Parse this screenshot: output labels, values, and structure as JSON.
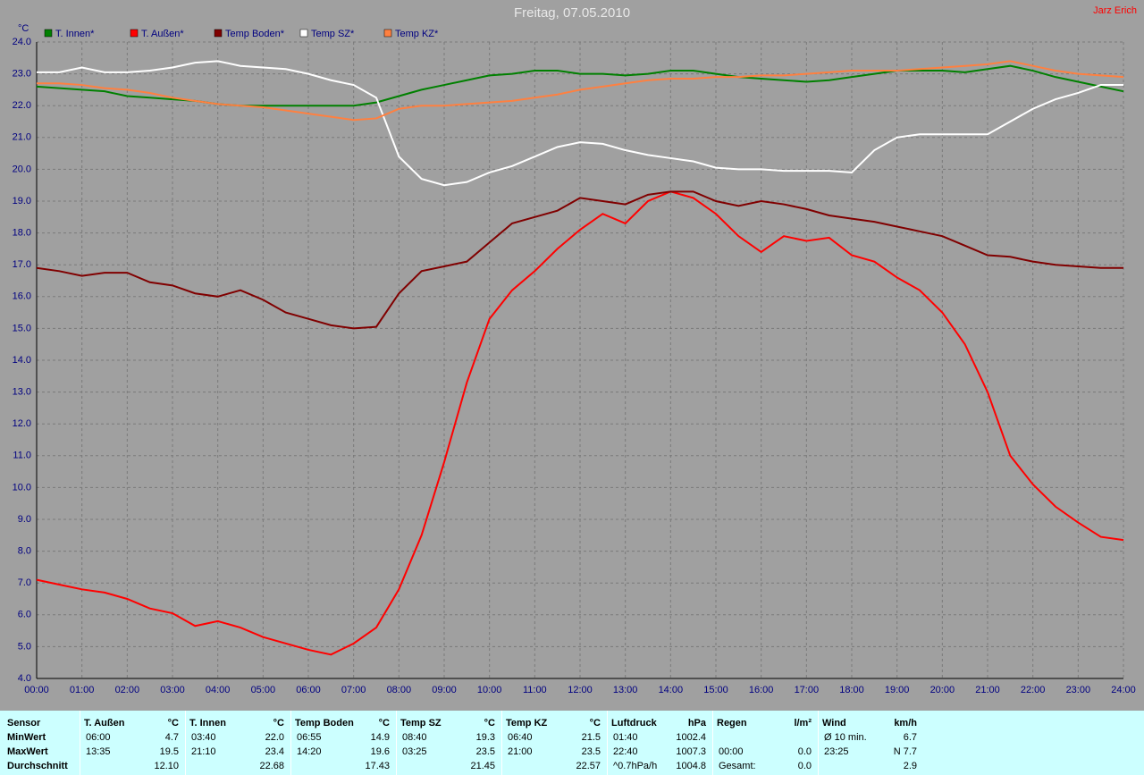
{
  "chart_data": {
    "type": "line",
    "title": "Freitag, 07.05.2010",
    "author": "Jarz Erich",
    "y_label": "°C",
    "x": [
      0,
      0.5,
      1,
      1.5,
      2,
      2.5,
      3,
      3.5,
      4,
      4.5,
      5,
      5.5,
      6,
      6.5,
      7,
      7.5,
      8,
      8.5,
      9,
      9.5,
      10,
      10.5,
      11,
      11.5,
      12,
      12.5,
      13,
      13.5,
      14,
      14.5,
      15,
      15.5,
      16,
      16.5,
      17,
      17.5,
      18,
      18.5,
      19,
      19.5,
      20,
      20.5,
      21,
      21.5,
      22,
      22.5,
      23,
      23.5,
      24
    ],
    "xlim": [
      0,
      24
    ],
    "xticks": [
      {
        "value": 0,
        "label": "00:00"
      },
      {
        "value": 1,
        "label": "01:00"
      },
      {
        "value": 2,
        "label": "02:00"
      },
      {
        "value": 3,
        "label": "03:00"
      },
      {
        "value": 4,
        "label": "04:00"
      },
      {
        "value": 5,
        "label": "05:00"
      },
      {
        "value": 6,
        "label": "06:00"
      },
      {
        "value": 7,
        "label": "07:00"
      },
      {
        "value": 8,
        "label": "08:00"
      },
      {
        "value": 9,
        "label": "09:00"
      },
      {
        "value": 10,
        "label": "10:00"
      },
      {
        "value": 11,
        "label": "11:00"
      },
      {
        "value": 12,
        "label": "12:00"
      },
      {
        "value": 13,
        "label": "13:00"
      },
      {
        "value": 14,
        "label": "14:00"
      },
      {
        "value": 15,
        "label": "15:00"
      },
      {
        "value": 16,
        "label": "16:00"
      },
      {
        "value": 17,
        "label": "17:00"
      },
      {
        "value": 18,
        "label": "18:00"
      },
      {
        "value": 19,
        "label": "19:00"
      },
      {
        "value": 20,
        "label": "20:00"
      },
      {
        "value": 21,
        "label": "21:00"
      },
      {
        "value": 22,
        "label": "22:00"
      },
      {
        "value": 23,
        "label": "23:00"
      },
      {
        "value": 24,
        "label": "24:00"
      }
    ],
    "ylim": [
      4,
      24
    ],
    "yticks": [
      {
        "value": 4,
        "label": "4.0"
      },
      {
        "value": 5,
        "label": "5.0"
      },
      {
        "value": 6,
        "label": "6.0"
      },
      {
        "value": 7,
        "label": "7.0"
      },
      {
        "value": 8,
        "label": "8.0"
      },
      {
        "value": 9,
        "label": "9.0"
      },
      {
        "value": 10,
        "label": "10.0"
      },
      {
        "value": 11,
        "label": "11.0"
      },
      {
        "value": 12,
        "label": "12.0"
      },
      {
        "value": 13,
        "label": "13.0"
      },
      {
        "value": 14,
        "label": "14.0"
      },
      {
        "value": 15,
        "label": "15.0"
      },
      {
        "value": 16,
        "label": "16.0"
      },
      {
        "value": 17,
        "label": "17.0"
      },
      {
        "value": 18,
        "label": "18.0"
      },
      {
        "value": 19,
        "label": "19.0"
      },
      {
        "value": 20,
        "label": "20.0"
      },
      {
        "value": 21,
        "label": "21.0"
      },
      {
        "value": 22,
        "label": "22.0"
      },
      {
        "value": 23,
        "label": "23.0"
      },
      {
        "value": 24,
        "label": "24.0"
      }
    ],
    "grid": true,
    "series": [
      {
        "name": "T. Innen*",
        "color": "#008000",
        "values": [
          22.6,
          22.55,
          22.5,
          22.45,
          22.3,
          22.25,
          22.2,
          22.15,
          22.05,
          22.0,
          22.0,
          22.0,
          22.0,
          22.0,
          22.0,
          22.1,
          22.3,
          22.5,
          22.65,
          22.8,
          22.95,
          23.0,
          23.1,
          23.1,
          23.0,
          23.0,
          22.95,
          23.0,
          23.1,
          23.1,
          23.0,
          22.9,
          22.85,
          22.8,
          22.75,
          22.8,
          22.9,
          23.0,
          23.1,
          23.1,
          23.1,
          23.05,
          23.15,
          23.25,
          23.1,
          22.9,
          22.75,
          22.6,
          22.45
        ]
      },
      {
        "name": "T. Außen*",
        "color": "#ff0000",
        "values": [
          7.1,
          6.95,
          6.8,
          6.7,
          6.5,
          6.2,
          6.05,
          5.65,
          5.8,
          5.6,
          5.3,
          5.1,
          4.9,
          4.75,
          5.1,
          5.6,
          6.8,
          8.5,
          10.8,
          13.3,
          15.3,
          16.2,
          16.8,
          17.5,
          18.1,
          18.6,
          18.3,
          19.0,
          19.3,
          19.1,
          18.6,
          17.9,
          17.4,
          17.9,
          17.75,
          17.85,
          17.3,
          17.1,
          16.6,
          16.2,
          15.5,
          14.5,
          13.0,
          11.0,
          10.1,
          9.4,
          8.9,
          8.45,
          8.35
        ]
      },
      {
        "name": "Temp Boden*",
        "color": "#800000",
        "values": [
          16.9,
          16.8,
          16.65,
          16.75,
          16.75,
          16.45,
          16.35,
          16.1,
          16.0,
          16.2,
          15.9,
          15.5,
          15.3,
          15.1,
          15.0,
          15.05,
          16.1,
          16.8,
          16.95,
          17.1,
          17.7,
          18.3,
          18.5,
          18.7,
          19.1,
          19.0,
          18.9,
          19.2,
          19.3,
          19.3,
          19.0,
          18.85,
          19.0,
          18.9,
          18.75,
          18.55,
          18.45,
          18.35,
          18.2,
          18.05,
          17.9,
          17.6,
          17.3,
          17.25,
          17.1,
          17.0,
          16.95,
          16.9,
          16.9
        ]
      },
      {
        "name": "Temp SZ*",
        "color": "#ffffff",
        "values": [
          23.05,
          23.05,
          23.2,
          23.05,
          23.05,
          23.1,
          23.2,
          23.35,
          23.4,
          23.25,
          23.2,
          23.15,
          23.0,
          22.8,
          22.65,
          22.25,
          20.4,
          19.7,
          19.5,
          19.6,
          19.9,
          20.1,
          20.4,
          20.7,
          20.85,
          20.8,
          20.6,
          20.45,
          20.35,
          20.25,
          20.05,
          20.0,
          20.0,
          19.95,
          19.95,
          19.95,
          19.9,
          20.6,
          21.0,
          21.1,
          21.1,
          21.1,
          21.1,
          21.5,
          21.9,
          22.2,
          22.4,
          22.65,
          22.65
        ]
      },
      {
        "name": "Temp KZ*",
        "color": "#ff8040",
        "values": [
          22.7,
          22.7,
          22.65,
          22.55,
          22.5,
          22.4,
          22.25,
          22.15,
          22.05,
          22.0,
          21.95,
          21.85,
          21.75,
          21.65,
          21.55,
          21.6,
          21.9,
          22.0,
          22.0,
          22.05,
          22.1,
          22.15,
          22.25,
          22.35,
          22.5,
          22.6,
          22.7,
          22.8,
          22.85,
          22.85,
          22.9,
          22.9,
          22.95,
          22.95,
          23.0,
          23.05,
          23.1,
          23.1,
          23.1,
          23.15,
          23.2,
          23.25,
          23.3,
          23.4,
          23.25,
          23.1,
          23.0,
          22.95,
          22.9
        ]
      }
    ]
  },
  "stats_table": {
    "row_labels": [
      "Sensor",
      "MinWert",
      "MaxWert",
      "Durchschnitt"
    ],
    "groups": [
      {
        "name": "T. Außen",
        "unit": "°C",
        "min": [
          "06:00",
          "4.7"
        ],
        "max": [
          "13:35",
          "19.5"
        ],
        "avg": [
          "12.10"
        ]
      },
      {
        "name": "T. Innen",
        "unit": "°C",
        "min": [
          "03:40",
          "22.0"
        ],
        "max": [
          "21:10",
          "23.4"
        ],
        "avg": [
          "22.68"
        ]
      },
      {
        "name": "Temp Boden",
        "unit": "°C",
        "min": [
          "06:55",
          "14.9"
        ],
        "max": [
          "14:20",
          "19.6"
        ],
        "avg": [
          "17.43"
        ]
      },
      {
        "name": "Temp SZ",
        "unit": "°C",
        "min": [
          "08:40",
          "19.3"
        ],
        "max": [
          "03:25",
          "23.5"
        ],
        "avg": [
          "21.45"
        ]
      },
      {
        "name": "Temp KZ",
        "unit": "°C",
        "min": [
          "06:40",
          "21.5"
        ],
        "max": [
          "21:00",
          "23.5"
        ],
        "avg": [
          "22.57"
        ]
      },
      {
        "name": "Luftdruck",
        "unit": "hPa",
        "min": [
          "01:40",
          "1002.4"
        ],
        "max": [
          "22:40",
          "1007.3"
        ],
        "avg": [
          "^0.7hPa/h",
          "1004.8"
        ]
      },
      {
        "name": "Regen",
        "unit": "l/m²",
        "min": [],
        "max": [
          "00:00",
          "0.0"
        ],
        "avg": [
          "Gesamt:",
          "0.0"
        ]
      },
      {
        "name": "Wind",
        "unit": "km/h",
        "min": [
          "Ø 10 min.",
          "6.7"
        ],
        "max": [
          "23:25",
          "N 7.7"
        ],
        "avg": [
          "2.9"
        ]
      }
    ]
  }
}
